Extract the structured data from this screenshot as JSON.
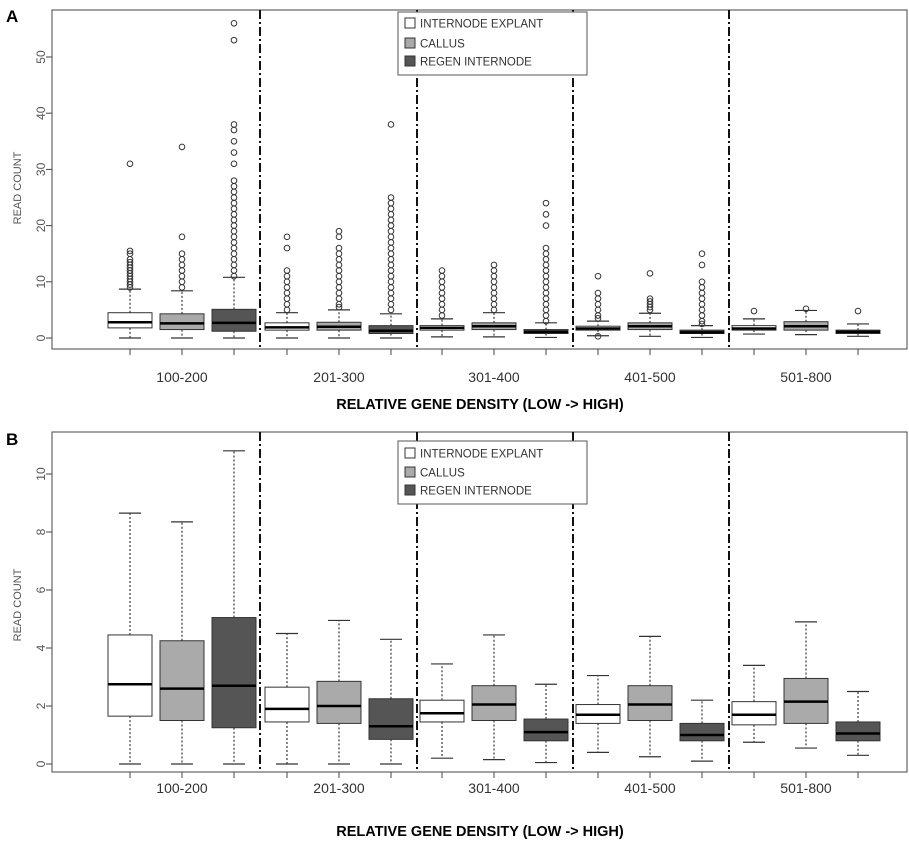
{
  "chart_data": [
    {
      "panel_label": "A",
      "type": "boxplot",
      "xlabel": "RELATIVE GENE DENSITY (LOW -> HIGH)",
      "ylabel": "READ COUNT",
      "ylim": [
        0,
        56
      ],
      "yticks": [
        0,
        10,
        20,
        30,
        40,
        50
      ],
      "categories": [
        "100-200",
        "201-300",
        "301-400",
        "401-500",
        "501-800"
      ],
      "legend": {
        "position": "top-center",
        "entries": [
          {
            "name": "INTERNODE EXPLANT",
            "color": "#ffffff"
          },
          {
            "name": "CALLUS",
            "color": "#aaaaaa"
          },
          {
            "name": "REGEN INTERNODE",
            "color": "#555555"
          }
        ]
      },
      "series": [
        {
          "name": "INTERNODE EXPLANT",
          "color": "#ffffff",
          "boxes": [
            {
              "category": "100-200",
              "whisker_low": 0,
              "q1": 1.8,
              "median": 2.8,
              "q3": 4.5,
              "whisker_high": 8.7,
              "outliers": [
                9,
                9.5,
                10,
                10.5,
                11,
                11.5,
                12,
                12.5,
                13,
                13.5,
                14,
                15,
                15.5,
                31
              ]
            },
            {
              "category": "201-300",
              "whisker_low": 0,
              "q1": 1.4,
              "median": 1.9,
              "q3": 2.7,
              "whisker_high": 4.5,
              "outliers": [
                5,
                6,
                7,
                8,
                9,
                10,
                11,
                12,
                16,
                18
              ]
            },
            {
              "category": "301-400",
              "whisker_low": 0.2,
              "q1": 1.4,
              "median": 1.8,
              "q3": 2.2,
              "whisker_high": 3.4,
              "outliers": [
                4,
                5,
                6,
                7,
                8,
                9,
                10,
                11,
                12
              ]
            },
            {
              "category": "401-500",
              "whisker_low": 0.4,
              "q1": 1.4,
              "median": 1.7,
              "q3": 2.1,
              "whisker_high": 3.0,
              "outliers": [
                0.3,
                3.5,
                4,
                5,
                6,
                7,
                8,
                11
              ]
            },
            {
              "category": "501-800",
              "whisker_low": 0.7,
              "q1": 1.4,
              "median": 1.7,
              "q3": 2.2,
              "whisker_high": 3.4,
              "outliers": [
                4.8
              ]
            }
          ]
        },
        {
          "name": "CALLUS",
          "color": "#aaaaaa",
          "boxes": [
            {
              "category": "100-200",
              "whisker_low": 0,
              "q1": 1.5,
              "median": 2.6,
              "q3": 4.3,
              "whisker_high": 8.4,
              "outliers": [
                9,
                10,
                11,
                12,
                13,
                14,
                15,
                18,
                34
              ]
            },
            {
              "category": "201-300",
              "whisker_low": 0,
              "q1": 1.4,
              "median": 2.0,
              "q3": 2.8,
              "whisker_high": 5.0,
              "outliers": [
                5.5,
                6,
                7,
                8,
                9,
                10,
                11,
                12,
                13,
                14,
                15,
                16,
                18,
                19
              ]
            },
            {
              "category": "301-400",
              "whisker_low": 0.2,
              "q1": 1.5,
              "median": 2.1,
              "q3": 2.7,
              "whisker_high": 4.5,
              "outliers": [
                5,
                6,
                7,
                8,
                9,
                10,
                11,
                12,
                13
              ]
            },
            {
              "category": "401-500",
              "whisker_low": 0.3,
              "q1": 1.5,
              "median": 2.1,
              "q3": 2.7,
              "whisker_high": 4.4,
              "outliers": [
                5,
                5.5,
                6,
                6.5,
                7,
                11.5
              ]
            },
            {
              "category": "501-800",
              "whisker_low": 0.6,
              "q1": 1.4,
              "median": 2.1,
              "q3": 2.9,
              "whisker_high": 4.9,
              "outliers": [
                5.2
              ]
            }
          ]
        },
        {
          "name": "REGEN INTERNODE",
          "color": "#555555",
          "boxes": [
            {
              "category": "100-200",
              "whisker_low": 0,
              "q1": 1.2,
              "median": 2.7,
              "q3": 5.1,
              "whisker_high": 10.8,
              "outliers": [
                11,
                12,
                13,
                14,
                15,
                16,
                17,
                18,
                19,
                20,
                21,
                22,
                23,
                24,
                25,
                26,
                27,
                28,
                31,
                33,
                35,
                37,
                38,
                53,
                56
              ]
            },
            {
              "category": "201-300",
              "whisker_low": 0,
              "q1": 0.8,
              "median": 1.3,
              "q3": 2.2,
              "whisker_high": 4.3,
              "outliers": [
                5,
                6,
                7,
                8,
                9,
                10,
                11,
                12,
                13,
                14,
                15,
                16,
                17,
                18,
                19,
                20,
                21,
                22,
                23,
                24,
                25,
                38
              ]
            },
            {
              "category": "301-400",
              "whisker_low": 0.1,
              "q1": 0.8,
              "median": 1.1,
              "q3": 1.5,
              "whisker_high": 2.7,
              "outliers": [
                3,
                4,
                5,
                6,
                7,
                8,
                9,
                10,
                11,
                12,
                13,
                14,
                15,
                16,
                20,
                22,
                24
              ]
            },
            {
              "category": "401-500",
              "whisker_low": 0.1,
              "q1": 0.8,
              "median": 1.0,
              "q3": 1.4,
              "whisker_high": 2.2,
              "outliers": [
                2.5,
                3,
                4,
                5,
                6,
                7,
                8,
                9,
                10,
                13,
                15
              ]
            },
            {
              "category": "501-800",
              "whisker_low": 0.3,
              "q1": 0.8,
              "median": 1.1,
              "q3": 1.4,
              "whisker_high": 2.5,
              "outliers": [
                4.8
              ]
            }
          ]
        }
      ]
    },
    {
      "panel_label": "B",
      "type": "boxplot",
      "xlabel": "RELATIVE GENE DENSITY (LOW -> HIGH)",
      "ylabel": "READ COUNT",
      "ylim": [
        -0.2,
        11
      ],
      "yticks": [
        0,
        2,
        4,
        6,
        8,
        10
      ],
      "categories": [
        "100-200",
        "201-300",
        "301-400",
        "401-500",
        "501-800"
      ],
      "legend": {
        "position": "top-center",
        "entries": [
          {
            "name": "INTERNODE EXPLANT",
            "color": "#ffffff"
          },
          {
            "name": "CALLUS",
            "color": "#aaaaaa"
          },
          {
            "name": "REGEN INTERNODE",
            "color": "#555555"
          }
        ]
      },
      "series": [
        {
          "name": "INTERNODE EXPLANT",
          "color": "#ffffff",
          "boxes": [
            {
              "category": "100-200",
              "whisker_low": 0,
              "q1": 1.65,
              "median": 2.75,
              "q3": 4.45,
              "whisker_high": 8.65
            },
            {
              "category": "201-300",
              "whisker_low": 0,
              "q1": 1.45,
              "median": 1.9,
              "q3": 2.65,
              "whisker_high": 4.5
            },
            {
              "category": "301-400",
              "whisker_low": 0.2,
              "q1": 1.45,
              "median": 1.75,
              "q3": 2.2,
              "whisker_high": 3.45
            },
            {
              "category": "401-500",
              "whisker_low": 0.4,
              "q1": 1.4,
              "median": 1.7,
              "q3": 2.05,
              "whisker_high": 3.05
            },
            {
              "category": "501-800",
              "whisker_low": 0.75,
              "q1": 1.35,
              "median": 1.7,
              "q3": 2.15,
              "whisker_high": 3.4
            }
          ]
        },
        {
          "name": "CALLUS",
          "color": "#aaaaaa",
          "boxes": [
            {
              "category": "100-200",
              "whisker_low": 0,
              "q1": 1.5,
              "median": 2.6,
              "q3": 4.25,
              "whisker_high": 8.35
            },
            {
              "category": "201-300",
              "whisker_low": 0,
              "q1": 1.4,
              "median": 2.0,
              "q3": 2.85,
              "whisker_high": 4.95
            },
            {
              "category": "301-400",
              "whisker_low": 0.15,
              "q1": 1.5,
              "median": 2.05,
              "q3": 2.7,
              "whisker_high": 4.45
            },
            {
              "category": "401-500",
              "whisker_low": 0.25,
              "q1": 1.5,
              "median": 2.05,
              "q3": 2.7,
              "whisker_high": 4.4
            },
            {
              "category": "501-800",
              "whisker_low": 0.55,
              "q1": 1.4,
              "median": 2.15,
              "q3": 2.95,
              "whisker_high": 4.9
            }
          ]
        },
        {
          "name": "REGEN INTERNODE",
          "color": "#555555",
          "boxes": [
            {
              "category": "100-200",
              "whisker_low": 0,
              "q1": 1.25,
              "median": 2.7,
              "q3": 5.05,
              "whisker_high": 10.8
            },
            {
              "category": "201-300",
              "whisker_low": 0,
              "q1": 0.85,
              "median": 1.3,
              "q3": 2.25,
              "whisker_high": 4.3
            },
            {
              "category": "301-400",
              "whisker_low": 0.05,
              "q1": 0.8,
              "median": 1.1,
              "q3": 1.55,
              "whisker_high": 2.75
            },
            {
              "category": "401-500",
              "whisker_low": 0.1,
              "q1": 0.8,
              "median": 1.0,
              "q3": 1.4,
              "whisker_high": 2.2
            },
            {
              "category": "501-800",
              "whisker_low": 0.3,
              "q1": 0.8,
              "median": 1.05,
              "q3": 1.45,
              "whisker_high": 2.5
            }
          ]
        }
      ]
    }
  ]
}
